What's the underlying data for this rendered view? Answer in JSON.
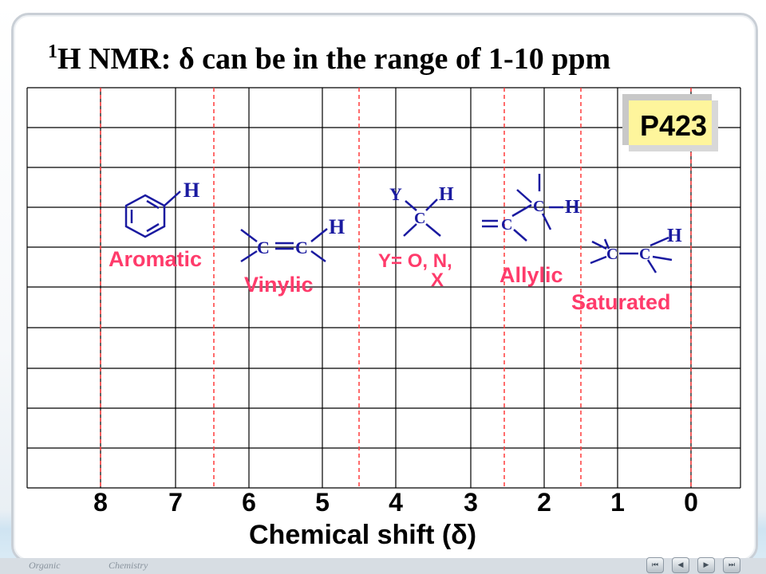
{
  "slide": {
    "title_sup": "1",
    "title_main": "H NMR: δ can be in the range of 1-10 ppm",
    "page_ref": "P423"
  },
  "colors": {
    "grid": "#000000",
    "dashed_lines": "#ff3b3b",
    "labels": "#ff3b6b",
    "structures": "#1a1aa0",
    "badge": "#fef59c"
  },
  "axis": {
    "ticks": [
      "8",
      "7",
      "6",
      "5",
      "4",
      "3",
      "2",
      "1",
      "0"
    ],
    "xlabel": "Chemical shift (δ)"
  },
  "regions": {
    "aromatic": "Aromatic",
    "vinylic": "Vinylic",
    "y_line1": "Y= O, N,",
    "y_line2": "X",
    "allylic": "Allylic",
    "saturated": "Saturated"
  },
  "atoms": {
    "H": "H",
    "C": "C",
    "Y": "Y"
  },
  "footer": {
    "left": "Organic",
    "right": "Chemistry"
  }
}
